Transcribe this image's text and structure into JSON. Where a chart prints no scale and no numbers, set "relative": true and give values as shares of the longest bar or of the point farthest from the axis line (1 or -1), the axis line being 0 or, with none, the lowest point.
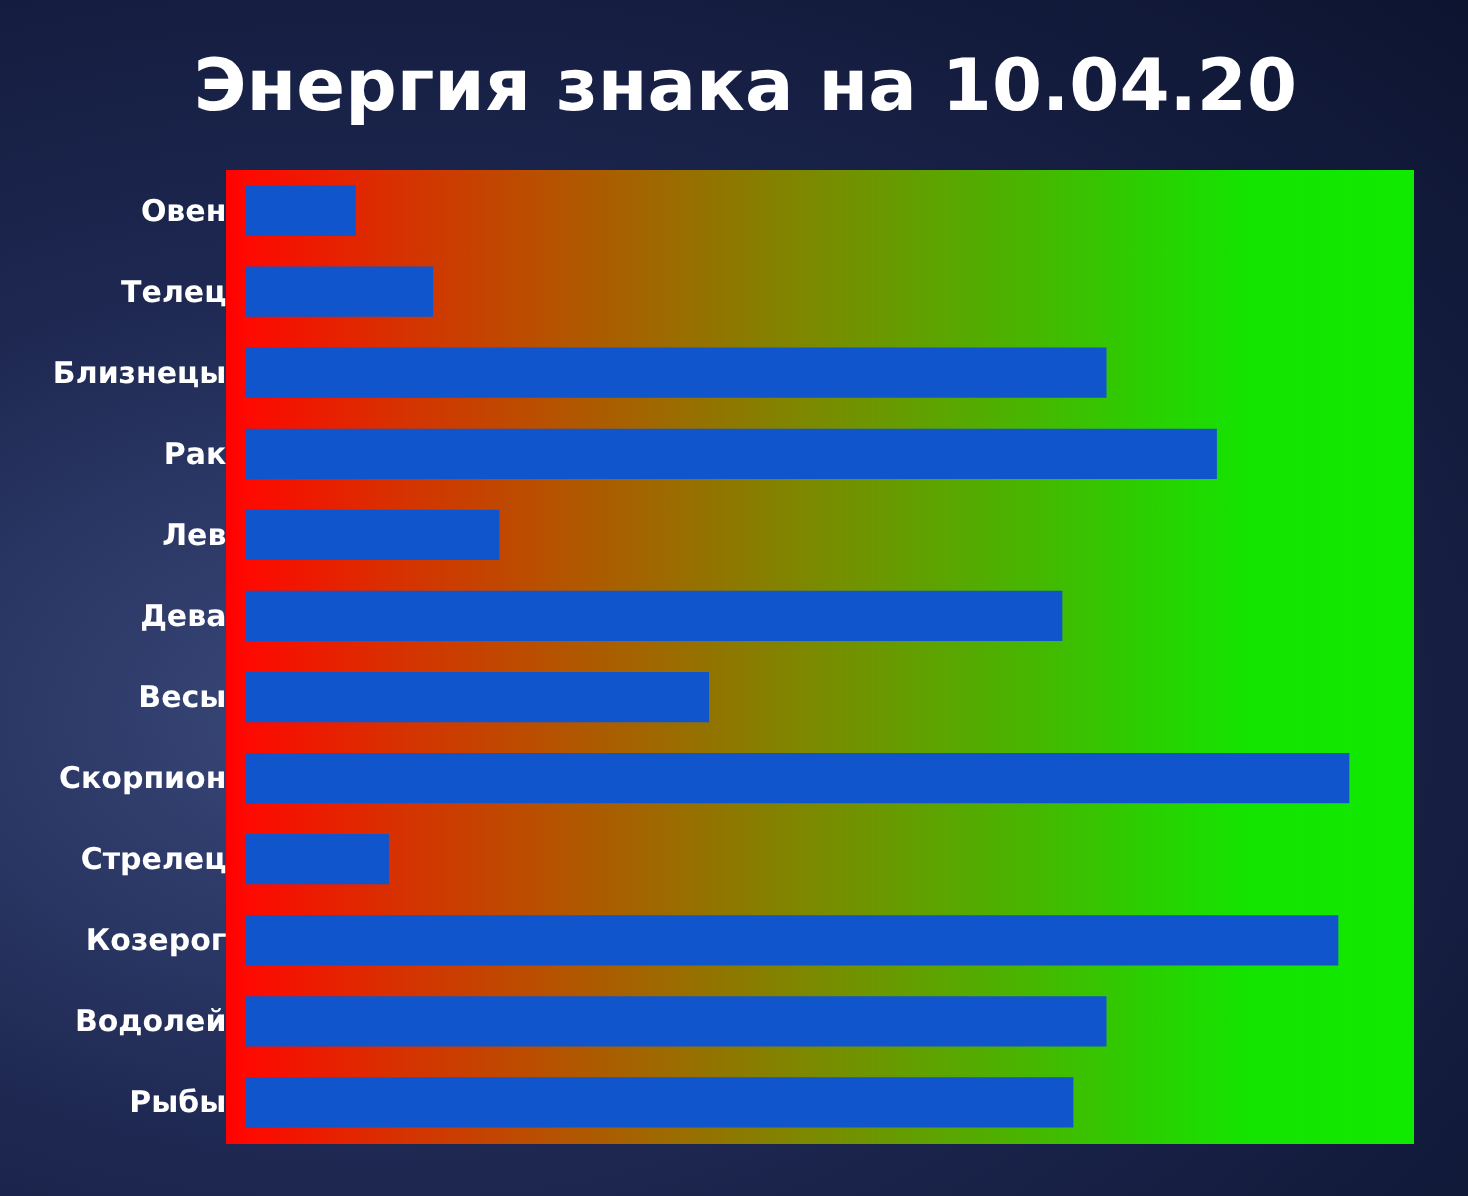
{
  "chart_data": {
    "type": "bar",
    "orientation": "horizontal",
    "relative": true,
    "title": "Энергия знака на 10.04.20",
    "categories": [
      "Овен",
      "Телец",
      "Близнецы",
      "Рак",
      "Лев",
      "Дева",
      "Весы",
      "Скорпион",
      "Стрелец",
      "Козерог",
      "Водолей",
      "Рыбы"
    ],
    "values": [
      0.1,
      0.17,
      0.78,
      0.88,
      0.23,
      0.74,
      0.42,
      1,
      0.13,
      0.99,
      0.78,
      0.75
    ],
    "color": "#1155cc"
  }
}
